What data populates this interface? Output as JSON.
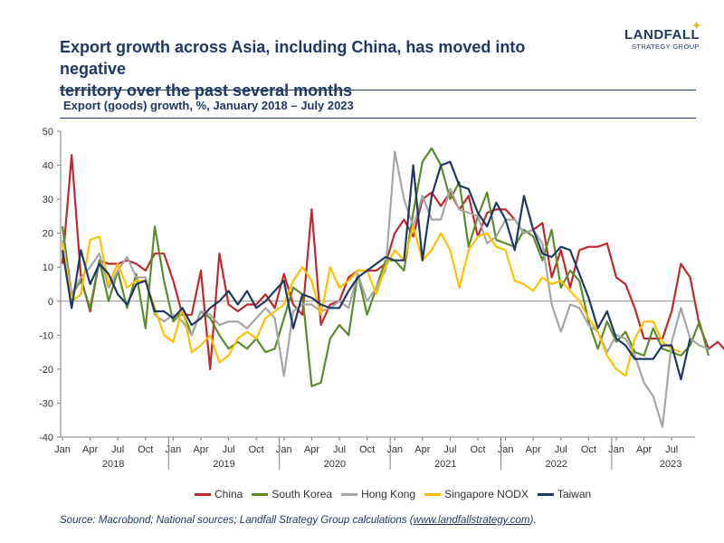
{
  "header": {
    "headline_line1": "Export growth across Asia, including China, has moved into negative",
    "headline_line2": "territory over the past several months",
    "logo_main": "LANDFALL",
    "logo_sub": "STRATEGY GROUP",
    "logo_icon": "sparkle-icon"
  },
  "subtitle": "Export (goods) growth, %, January 2018 – July 2023",
  "source": {
    "prefix": "Source: Macrobond; National sources; Landfall Strategy Group calculations (",
    "link": "www.landfallstrategy.com",
    "suffix": ")."
  },
  "chart_data": {
    "type": "line",
    "ylim": [
      -40,
      50
    ],
    "yticks": [
      -40,
      -30,
      -20,
      -10,
      0,
      10,
      20,
      30,
      40,
      50
    ],
    "grid": false,
    "legend_position": "bottom",
    "x_tick_labels": [
      "Jan",
      "Apr",
      "Jul",
      "Oct",
      "Jan",
      "Apr",
      "Jul",
      "Oct",
      "Jan",
      "Apr",
      "Jul",
      "Oct",
      "Jan",
      "Apr",
      "Jul",
      "Oct",
      "Jan",
      "Apr",
      "Jul",
      "Oct",
      "Jan",
      "Apr",
      "Jul"
    ],
    "year_labels": [
      "2018",
      "2019",
      "2020",
      "2021",
      "2022",
      "2023"
    ],
    "x_start": "2018-01",
    "x_end": "2023-07",
    "series": [
      {
        "name": "China",
        "color": "#c0282d",
        "values": [
          11,
          43,
          7,
          -3,
          12,
          11,
          11,
          12,
          11,
          9,
          14,
          14,
          6,
          -4,
          -4,
          9,
          -20,
          14,
          -1,
          -3,
          -1,
          -1,
          2,
          -2,
          8,
          -1,
          -4,
          27,
          -7,
          -1,
          0,
          7,
          9,
          9,
          9,
          11,
          20,
          24,
          19,
          30,
          32,
          28,
          32,
          27,
          31,
          19,
          26,
          27,
          27,
          24,
          20,
          21,
          23,
          7,
          15,
          4,
          15,
          16,
          16,
          17,
          7,
          5,
          -2,
          -11,
          -11,
          -11,
          -3,
          11,
          7,
          -7,
          -14,
          -12,
          -15
        ]
      },
      {
        "name": "South Korea",
        "color": "#5b8c2a",
        "values": [
          22,
          2,
          6,
          -2,
          12,
          0,
          9,
          -2,
          8,
          -8,
          22,
          6,
          -6,
          -3,
          -10,
          -3,
          -5,
          -10,
          -14,
          -12,
          -14,
          -11,
          -15,
          -14,
          -5,
          4,
          2,
          -25,
          -24,
          -11,
          -7,
          -10,
          8,
          -4,
          4,
          12,
          12,
          9,
          26,
          41,
          45,
          40,
          30,
          35,
          16,
          25,
          32,
          18,
          17,
          16,
          21,
          19,
          12,
          21,
          4,
          9,
          6,
          -6,
          -14,
          -6,
          -12,
          -9,
          -15,
          -16,
          -8,
          -14,
          -15,
          -16,
          -13,
          -6,
          -16
        ]
      },
      {
        "name": "Hong Kong",
        "color": "#a6a6a6",
        "values": [
          18,
          2,
          7,
          10,
          14,
          4,
          9,
          13,
          7,
          7,
          -4,
          -6,
          -4,
          -6,
          -10,
          -3,
          -4,
          -7,
          -6,
          -6,
          -8,
          -5,
          -2,
          -5,
          -22,
          -3,
          -1,
          -1,
          -3,
          -2,
          0,
          -2,
          8,
          0,
          4,
          9,
          44,
          30,
          22,
          31,
          24,
          24,
          33,
          27,
          26,
          25,
          17,
          19,
          24,
          24,
          20,
          21,
          17,
          -1,
          -9,
          -1,
          -2,
          -7,
          -9,
          -15,
          -10,
          -11,
          -16,
          -24,
          -28,
          -37,
          -12,
          -2,
          -11,
          -13,
          -14
        ]
      },
      {
        "name": "Singapore NODX",
        "color": "#ffc000",
        "values": [
          17,
          0,
          2,
          18,
          19,
          5,
          11,
          4,
          6,
          6,
          -2,
          -10,
          -12,
          -2,
          -15,
          -13,
          -10,
          -18,
          -16,
          -11,
          -9,
          -11,
          -5,
          -3,
          -1,
          6,
          10,
          6,
          -4,
          10,
          4,
          6,
          9,
          9,
          2,
          10,
          15,
          12,
          22,
          12,
          15,
          20,
          15,
          4,
          15,
          19,
          20,
          16,
          15,
          6,
          5,
          3,
          7,
          5,
          6,
          3,
          0,
          -5,
          -9,
          -16,
          -20,
          -22,
          -11,
          -6,
          -6,
          -12,
          -14,
          -15
        ]
      },
      {
        "name": "Taiwan",
        "color": "#1f3864",
        "values": [
          15,
          -2,
          15,
          5,
          11,
          8,
          2,
          -1,
          5,
          6,
          -3,
          -3,
          -5,
          -2,
          -7,
          -5,
          -2,
          0,
          3,
          -1,
          3,
          -2,
          0,
          3,
          6,
          -8,
          2,
          1,
          -1,
          -2,
          -2,
          3,
          7,
          9,
          11,
          13,
          12,
          12,
          40,
          12,
          31,
          40,
          41,
          34,
          33,
          26,
          22,
          29,
          24,
          15,
          31,
          21,
          14,
          13,
          16,
          15,
          8,
          1,
          -8,
          -3,
          -11,
          -13,
          -17,
          -17,
          -17,
          -13,
          -13,
          -23,
          -11
        ]
      }
    ]
  }
}
